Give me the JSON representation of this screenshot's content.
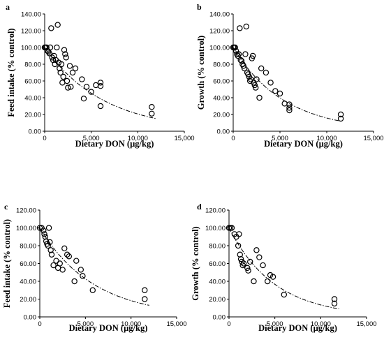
{
  "chart_data": [
    {
      "panel": "a",
      "type": "scatter",
      "xlabel": "Dietary DON (µg/kg)",
      "ylabel": "Feed intake (% control)",
      "xlim": [
        0,
        15000
      ],
      "ylim": [
        0,
        140
      ],
      "x_ticks": [
        "0",
        "5,000",
        "10,000",
        "15,000"
      ],
      "y_ticks": [
        "0.00",
        "20.00",
        "40.00",
        "60.00",
        "80.00",
        "100.00",
        "120.00",
        "140.00"
      ],
      "points": [
        [
          0,
          100
        ],
        [
          100,
          100
        ],
        [
          200,
          100
        ],
        [
          300,
          96
        ],
        [
          400,
          95
        ],
        [
          500,
          93
        ],
        [
          600,
          100
        ],
        [
          700,
          123
        ],
        [
          800,
          88
        ],
        [
          900,
          85
        ],
        [
          1000,
          90
        ],
        [
          1100,
          80
        ],
        [
          1200,
          85
        ],
        [
          1300,
          100
        ],
        [
          1400,
          127
        ],
        [
          1500,
          82
        ],
        [
          1600,
          75
        ],
        [
          1700,
          70
        ],
        [
          1800,
          80
        ],
        [
          1900,
          58
        ],
        [
          2000,
          65
        ],
        [
          2100,
          97
        ],
        [
          2200,
          92
        ],
        [
          2300,
          88
        ],
        [
          2400,
          60
        ],
        [
          2500,
          52
        ],
        [
          2700,
          78
        ],
        [
          2800,
          53
        ],
        [
          3000,
          70
        ],
        [
          3300,
          75
        ],
        [
          4000,
          62
        ],
        [
          4200,
          39
        ],
        [
          4500,
          53
        ],
        [
          5000,
          47
        ],
        [
          5500,
          55
        ],
        [
          6000,
          54
        ],
        [
          6000,
          58
        ],
        [
          6000,
          30
        ],
        [
          11500,
          29
        ],
        [
          11500,
          21
        ]
      ],
      "trend": [
        [
          0,
          100
        ],
        [
          12000,
          15
        ]
      ]
    },
    {
      "panel": "b",
      "type": "scatter",
      "xlabel": "Dietary DON (µg/kg)",
      "ylabel": "Growth (% control)",
      "xlim": [
        0,
        15000
      ],
      "ylim": [
        0,
        140
      ],
      "x_ticks": [
        "0",
        "5,000",
        "10,000",
        "15,000"
      ],
      "y_ticks": [
        "0.00",
        "20.00",
        "40.00",
        "60.00",
        "80.00",
        "100.00",
        "120.00",
        "140.00"
      ],
      "points": [
        [
          0,
          100
        ],
        [
          100,
          100
        ],
        [
          200,
          100
        ],
        [
          300,
          96
        ],
        [
          400,
          92
        ],
        [
          500,
          90
        ],
        [
          600,
          92
        ],
        [
          700,
          123
        ],
        [
          800,
          85
        ],
        [
          900,
          84
        ],
        [
          1000,
          80
        ],
        [
          1100,
          78
        ],
        [
          1200,
          75
        ],
        [
          1300,
          92
        ],
        [
          1400,
          125
        ],
        [
          1500,
          70
        ],
        [
          1600,
          68
        ],
        [
          1700,
          65
        ],
        [
          1800,
          60
        ],
        [
          1900,
          62
        ],
        [
          2000,
          87
        ],
        [
          2100,
          90
        ],
        [
          2200,
          58
        ],
        [
          2300,
          55
        ],
        [
          2400,
          52
        ],
        [
          2500,
          62
        ],
        [
          2800,
          40
        ],
        [
          3000,
          75
        ],
        [
          3500,
          70
        ],
        [
          4000,
          58
        ],
        [
          4500,
          48
        ],
        [
          5000,
          45
        ],
        [
          5500,
          33
        ],
        [
          6000,
          25
        ],
        [
          6000,
          32
        ],
        [
          6000,
          28
        ],
        [
          11500,
          20
        ],
        [
          11500,
          15
        ]
      ],
      "trend": [
        [
          0,
          100
        ],
        [
          11500,
          12
        ]
      ]
    },
    {
      "panel": "c",
      "type": "scatter",
      "xlabel": "Dietary DON (µg/kg)",
      "ylabel": "Feed intake (% control)",
      "xlim": [
        0,
        15000
      ],
      "ylim": [
        0,
        120
      ],
      "x_ticks": [
        "0",
        "5,000",
        "10,000",
        "15,000"
      ],
      "y_ticks": [
        "0.00",
        "20.00",
        "40.00",
        "60.00",
        "80.00",
        "100.00",
        "120.00"
      ],
      "points": [
        [
          0,
          100
        ],
        [
          200,
          100
        ],
        [
          400,
          97
        ],
        [
          500,
          93
        ],
        [
          600,
          90
        ],
        [
          700,
          85
        ],
        [
          800,
          82
        ],
        [
          900,
          80
        ],
        [
          1000,
          100
        ],
        [
          1100,
          84
        ],
        [
          1200,
          75
        ],
        [
          1300,
          70
        ],
        [
          1500,
          58
        ],
        [
          1800,
          63
        ],
        [
          2000,
          55
        ],
        [
          2200,
          60
        ],
        [
          2500,
          53
        ],
        [
          2700,
          77
        ],
        [
          3000,
          70
        ],
        [
          3200,
          68
        ],
        [
          3800,
          40
        ],
        [
          4000,
          63
        ],
        [
          4500,
          53
        ],
        [
          4700,
          46
        ],
        [
          5800,
          30
        ],
        [
          11500,
          30
        ],
        [
          11500,
          20
        ]
      ],
      "trend": [
        [
          0,
          100
        ],
        [
          12000,
          13
        ]
      ]
    },
    {
      "panel": "d",
      "type": "scatter",
      "xlabel": "Dietary DON (µg/kg)",
      "ylabel": "Growth (% control)",
      "xlim": [
        0,
        15000
      ],
      "ylim": [
        0,
        120
      ],
      "x_ticks": [
        "0",
        "5,000",
        "10,000",
        "15,000"
      ],
      "y_ticks": [
        "0.00",
        "20.00",
        "40.00",
        "60.00",
        "80.00",
        "100.00",
        "120.00"
      ],
      "points": [
        [
          0,
          100
        ],
        [
          150,
          100
        ],
        [
          300,
          100
        ],
        [
          600,
          93
        ],
        [
          800,
          90
        ],
        [
          1000,
          80
        ],
        [
          1100,
          93
        ],
        [
          1200,
          70
        ],
        [
          1300,
          65
        ],
        [
          1400,
          62
        ],
        [
          1500,
          58
        ],
        [
          1600,
          60
        ],
        [
          2000,
          55
        ],
        [
          2100,
          52
        ],
        [
          2300,
          62
        ],
        [
          2700,
          40
        ],
        [
          3000,
          75
        ],
        [
          3300,
          67
        ],
        [
          3700,
          58
        ],
        [
          4200,
          40
        ],
        [
          4500,
          47
        ],
        [
          4800,
          45
        ],
        [
          6000,
          25
        ],
        [
          11500,
          20
        ],
        [
          11500,
          15
        ]
      ],
      "trend": [
        [
          0,
          100
        ],
        [
          12000,
          9
        ]
      ]
    }
  ]
}
